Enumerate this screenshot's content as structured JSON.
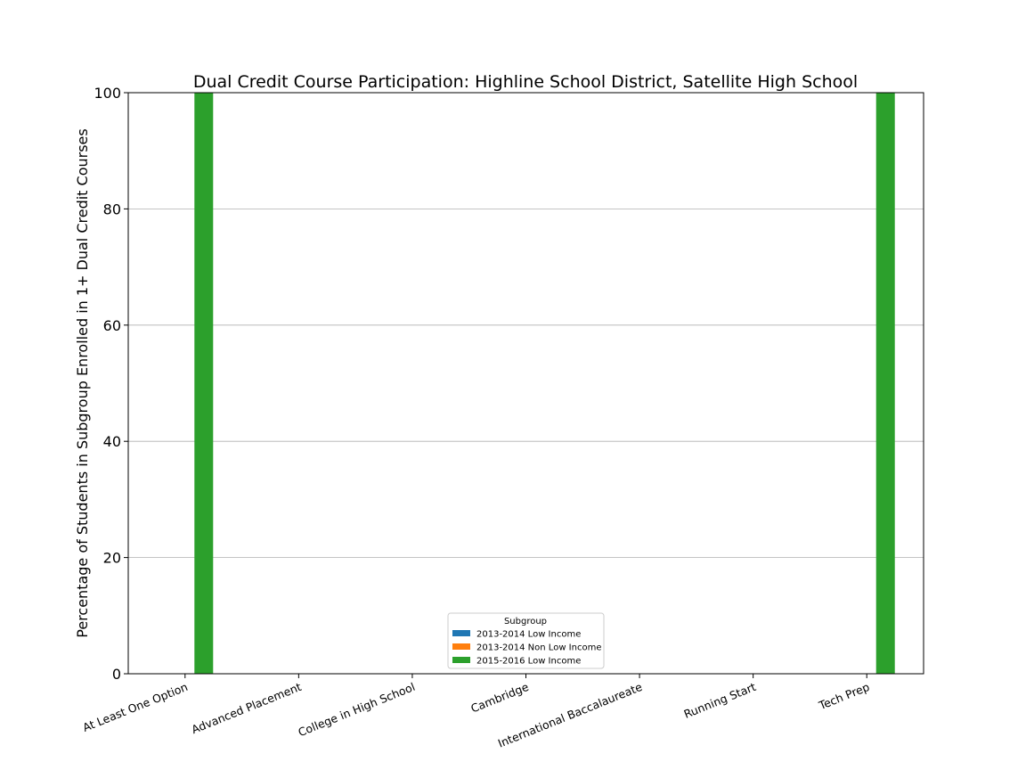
{
  "chart_data": {
    "type": "bar",
    "title": "Dual Credit Course Participation: Highline School District, Satellite High School",
    "xlabel": "",
    "ylabel": "Percentage of Students in Subgroup Enrolled in 1+ Dual Credit Courses",
    "ylim": [
      0,
      100
    ],
    "yticks": [
      0,
      20,
      40,
      60,
      80,
      100
    ],
    "grid": "horizontal",
    "categories": [
      "At Least One Option",
      "Advanced Placement",
      "College in High School",
      "Cambridge",
      "International Baccalaureate",
      "Running Start",
      "Tech Prep"
    ],
    "series": [
      {
        "name": "2013-2014 Low Income",
        "color": "#1f77b4",
        "values": [
          0,
          0,
          0,
          0,
          0,
          0,
          0
        ]
      },
      {
        "name": "2013-2014 Non Low Income",
        "color": "#ff7f0e",
        "values": [
          0,
          0,
          0,
          0,
          0,
          0,
          0
        ]
      },
      {
        "name": "2015-2016 Low Income",
        "color": "#2ca02c",
        "values": [
          100,
          0,
          0,
          0,
          0,
          0,
          100
        ]
      }
    ],
    "legend": {
      "title": "Subgroup",
      "placement": "lower-center"
    }
  }
}
